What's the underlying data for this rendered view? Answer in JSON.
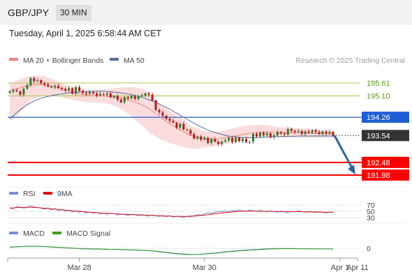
{
  "header": {
    "pair": "GBP/JPY",
    "timeframe": "30 MIN",
    "timestamp": "Tuesday, April 1, 2025 6:58:44 AM CET"
  },
  "colors": {
    "ma20": "#f08080",
    "bollinger_fill": "#fadcdc",
    "ma50": "#4a6fa5",
    "up_candle": "#2e7d32",
    "down_candle": "#b71c1c",
    "resistance_blue": "#1f5fd6",
    "support_red": "#ff0000",
    "green_level": "#a8c84a",
    "green_text": "#5a9a1a",
    "last_price_bg": "#333333",
    "arrow": "#2e63a8",
    "rsi": "#6f8fd8",
    "rsi_ma": "#e01010",
    "macd": "#6f8fd8",
    "macd_signal": "#3aa020"
  },
  "chart_data": [
    {
      "type": "candlestick",
      "legend": [
        {
          "label": "MA 20 + Bollinger Bands",
          "color": "#f08080"
        },
        {
          "label": "MA 50",
          "color": "#4a6fa5"
        }
      ],
      "watermark": "Research © 2025 Trading Central",
      "ylim": [
        191.7,
        196.1
      ],
      "closes": [
        195.27,
        195.32,
        195.28,
        195.15,
        195.38,
        195.52,
        195.8,
        195.68,
        195.72,
        195.6,
        195.55,
        195.48,
        195.45,
        195.5,
        195.42,
        195.38,
        195.32,
        195.4,
        195.2,
        195.45,
        195.3,
        195.22,
        195.18,
        195.25,
        195.2,
        195.12,
        195.18,
        195.15,
        195.2,
        195.05,
        195.1,
        194.95,
        194.85,
        195.05,
        195.0,
        195.1,
        194.98,
        195.08,
        195.12,
        195.2,
        195.15,
        194.92,
        194.55,
        194.45,
        194.32,
        194.2,
        194.12,
        194.05,
        193.85,
        194.0,
        193.78,
        193.75,
        193.6,
        193.42,
        193.5,
        193.38,
        193.45,
        193.25,
        193.4,
        193.3,
        193.2,
        193.3,
        193.35,
        193.45,
        193.28,
        193.45,
        193.32,
        193.4,
        193.28,
        193.3,
        193.6,
        193.5,
        193.65,
        193.55,
        193.62,
        193.48,
        193.55,
        193.68,
        193.62,
        193.58,
        193.8,
        193.72,
        193.68,
        193.72,
        193.6,
        193.7,
        193.65,
        193.75,
        193.68,
        193.6,
        193.7,
        193.62,
        193.68,
        193.54
      ],
      "ma20": [
        195.3,
        195.35,
        195.38,
        195.42,
        195.47,
        195.5,
        195.52,
        195.54,
        195.55,
        195.55,
        195.53,
        195.5,
        195.47,
        195.44,
        195.4,
        195.35,
        195.31,
        195.27,
        195.23,
        195.2,
        195.18,
        195.16,
        195.14,
        195.12,
        195.11,
        195.11,
        195.1,
        195.1,
        195.09,
        195.08,
        195.07,
        195.05,
        195.02,
        194.98,
        194.94,
        194.9,
        194.85,
        194.8,
        194.75,
        194.68,
        194.6,
        194.5,
        194.4,
        194.3,
        194.2,
        194.1,
        194.0,
        193.92,
        193.84,
        193.76,
        193.68,
        193.6,
        193.55,
        193.5,
        193.46,
        193.43,
        193.41,
        193.4,
        193.4,
        193.4,
        193.41,
        193.43,
        193.45,
        193.48,
        193.5,
        193.52,
        193.55,
        193.58,
        193.6,
        193.62,
        193.64,
        193.65,
        193.66,
        193.67,
        193.67,
        193.67,
        193.66,
        193.66,
        193.65,
        193.65,
        193.65,
        193.65,
        193.64,
        193.64,
        193.64,
        193.64,
        193.63,
        193.62,
        193.62,
        193.62,
        193.61,
        193.61,
        193.6,
        193.6
      ],
      "bb_upper": [
        195.6,
        195.65,
        195.7,
        195.75,
        195.8,
        195.85,
        195.88,
        195.9,
        195.9,
        195.9,
        195.88,
        195.82,
        195.78,
        195.72,
        195.65,
        195.6,
        195.55,
        195.5,
        195.45,
        195.42,
        195.4,
        195.38,
        195.36,
        195.35,
        195.35,
        195.35,
        195.36,
        195.36,
        195.37,
        195.38,
        195.4,
        195.42,
        195.43,
        195.44,
        195.45,
        195.45,
        195.44,
        195.42,
        195.38,
        195.32,
        195.22,
        195.08,
        194.95,
        194.82,
        194.7,
        194.6,
        194.5,
        194.42,
        194.35,
        194.28,
        194.18,
        194.05,
        193.95,
        193.85,
        193.8,
        193.75,
        193.72,
        193.7,
        193.68,
        193.68,
        193.7,
        193.72,
        193.75,
        193.78,
        193.82,
        193.85,
        193.88,
        193.9,
        193.92,
        193.94,
        193.95,
        193.96,
        193.96,
        193.95,
        193.94,
        193.92,
        193.9,
        193.88,
        193.86,
        193.85,
        193.85,
        193.85,
        193.84,
        193.83,
        193.82,
        193.81,
        193.8,
        193.79,
        193.78,
        193.77,
        193.76,
        193.75,
        193.74,
        193.73
      ],
      "bb_lower": [
        194.1,
        194.18,
        194.3,
        194.45,
        194.6,
        194.75,
        194.9,
        195.0,
        195.05,
        195.08,
        195.1,
        195.1,
        195.1,
        195.1,
        195.08,
        195.05,
        195.0,
        194.98,
        194.95,
        194.92,
        194.9,
        194.88,
        194.86,
        194.85,
        194.84,
        194.84,
        194.83,
        194.82,
        194.8,
        194.76,
        194.72,
        194.66,
        194.58,
        194.5,
        194.4,
        194.3,
        194.18,
        194.05,
        193.92,
        193.8,
        193.68,
        193.58,
        193.5,
        193.42,
        193.35,
        193.3,
        193.25,
        193.2,
        193.16,
        193.12,
        193.08,
        193.05,
        193.03,
        193.02,
        193.02,
        193.04,
        193.06,
        193.08,
        193.1,
        193.12,
        193.14,
        193.18,
        193.2,
        193.24,
        193.28,
        193.32,
        193.36,
        193.4,
        193.44,
        193.46,
        193.48,
        193.5,
        193.5,
        193.5,
        193.5,
        193.49,
        193.48,
        193.47,
        193.46,
        193.46,
        193.46,
        193.46,
        193.46,
        193.46,
        193.46,
        193.46,
        193.46,
        193.46,
        193.46,
        193.46,
        193.46,
        193.46,
        193.46,
        193.46
      ],
      "ma50": [
        194.2,
        194.32,
        194.44,
        194.56,
        194.66,
        194.75,
        194.83,
        194.9,
        194.96,
        195.01,
        195.05,
        195.08,
        195.11,
        195.14,
        195.16,
        195.18,
        195.2,
        195.22,
        195.23,
        195.24,
        195.25,
        195.26,
        195.27,
        195.27,
        195.28,
        195.28,
        195.28,
        195.28,
        195.27,
        195.26,
        195.25,
        195.24,
        195.22,
        195.2,
        195.18,
        195.15,
        195.12,
        195.08,
        195.04,
        195.0,
        194.95,
        194.9,
        194.84,
        194.78,
        194.72,
        194.65,
        194.58,
        194.5,
        194.42,
        194.34,
        194.26,
        194.18,
        194.1,
        194.02,
        193.95,
        193.88,
        193.82,
        193.76,
        193.7,
        193.66,
        193.62,
        193.58,
        193.55,
        193.52,
        193.5,
        193.48,
        193.47,
        193.46,
        193.45,
        193.45,
        193.45,
        193.45,
        193.46,
        193.47,
        193.48,
        193.48,
        193.49,
        193.5,
        193.5,
        193.5,
        193.51,
        193.51,
        193.51,
        193.52,
        193.52,
        193.52,
        193.52,
        193.52,
        193.52,
        193.52,
        193.52,
        193.52,
        193.52,
        193.52
      ],
      "levels": [
        {
          "value": 195.61,
          "label": "195.61",
          "kind": "green"
        },
        {
          "value": 195.1,
          "label": "195.10",
          "kind": "green"
        },
        {
          "value": 194.26,
          "label": "194.26",
          "kind": "resistance"
        },
        {
          "value": 193.54,
          "label": "193.54",
          "kind": "last"
        },
        {
          "value": 192.48,
          "label": "192.48",
          "kind": "support"
        },
        {
          "value": 191.98,
          "label": "191.98",
          "kind": "support"
        }
      ],
      "forecast_arrow": {
        "from": 193.54,
        "to": 192.0
      }
    },
    {
      "type": "line",
      "legend": [
        {
          "label": "RSI",
          "color": "#6f8fd8"
        },
        {
          "label": "9MA",
          "color": "#e01010"
        }
      ],
      "ylim": [
        25,
        75
      ],
      "levels": [
        70,
        50,
        30
      ],
      "level_labels": [
        "70",
        "50",
        "30"
      ],
      "series": [
        {
          "name": "RSI",
          "values": [
            62,
            58,
            66,
            64,
            60,
            63,
            68,
            65,
            62,
            60,
            57,
            61,
            55,
            59,
            52,
            56,
            50,
            54,
            48,
            52,
            47,
            50,
            45,
            48,
            44,
            47,
            42,
            45,
            40,
            44,
            43,
            38,
            42,
            40,
            37,
            41,
            39,
            36,
            40,
            37,
            35,
            39,
            36,
            34,
            37,
            33,
            36,
            32,
            35,
            33,
            30,
            34,
            32,
            36,
            40,
            38,
            42,
            45,
            43,
            47,
            50,
            48,
            52,
            49,
            53,
            51,
            55,
            52,
            50,
            54,
            52,
            49,
            53,
            50,
            48,
            52,
            50,
            47,
            51,
            49,
            46,
            50,
            48,
            52,
            49,
            47,
            50,
            48,
            46,
            49,
            47,
            45,
            48,
            46
          ]
        },
        {
          "name": "9MA",
          "values": [
            60,
            61,
            62,
            62,
            63,
            63,
            63,
            62,
            62,
            61,
            60,
            59,
            58,
            57,
            56,
            55,
            54,
            53,
            52,
            51,
            50,
            49,
            48,
            47,
            46,
            46,
            45,
            44,
            44,
            43,
            43,
            42,
            41,
            41,
            40,
            40,
            39,
            39,
            38,
            38,
            37,
            37,
            36,
            36,
            35,
            35,
            35,
            34,
            34,
            34,
            34,
            34,
            35,
            35,
            36,
            37,
            38,
            39,
            41,
            42,
            44,
            45,
            46,
            47,
            48,
            49,
            50,
            50,
            51,
            51,
            51,
            51,
            51,
            50,
            50,
            50,
            50,
            49,
            49,
            49,
            49,
            49,
            49,
            49,
            49,
            48,
            48,
            48,
            48,
            48,
            47,
            47,
            47,
            47
          ]
        }
      ]
    },
    {
      "type": "line",
      "legend": [
        {
          "label": "MACD",
          "color": "#6f8fd8"
        },
        {
          "label": "MACD Signal",
          "color": "#3aa020"
        }
      ],
      "ylim": [
        -0.45,
        0.2
      ],
      "zero_label": "0",
      "series": [
        {
          "name": "MACD",
          "values": [
            0.05,
            0.06,
            0.07,
            0.08,
            0.09,
            0.1,
            0.1,
            0.1,
            0.09,
            0.09,
            0.08,
            0.07,
            0.06,
            0.05,
            0.04,
            0.03,
            0.02,
            0.01,
            0.0,
            -0.01,
            -0.02,
            -0.02,
            -0.03,
            -0.03,
            -0.04,
            -0.04,
            -0.04,
            -0.05,
            -0.05,
            -0.05,
            -0.06,
            -0.06,
            -0.07,
            -0.07,
            -0.08,
            -0.08,
            -0.09,
            -0.09,
            -0.1,
            -0.11,
            -0.12,
            -0.13,
            -0.15,
            -0.17,
            -0.19,
            -0.21,
            -0.23,
            -0.25,
            -0.27,
            -0.28,
            -0.29,
            -0.3,
            -0.3,
            -0.3,
            -0.29,
            -0.28,
            -0.26,
            -0.25,
            -0.23,
            -0.22,
            -0.2,
            -0.18,
            -0.16,
            -0.15,
            -0.13,
            -0.12,
            -0.1,
            -0.09,
            -0.08,
            -0.07,
            -0.06,
            -0.05,
            -0.04,
            -0.03,
            -0.02,
            -0.02,
            -0.01,
            -0.01,
            -0.01,
            -0.01,
            -0.01,
            -0.01,
            -0.02,
            -0.02,
            -0.02,
            -0.02,
            -0.02,
            -0.02,
            -0.03,
            -0.03,
            -0.03,
            -0.03,
            -0.03,
            -0.04
          ]
        },
        {
          "name": "MACD Signal",
          "values": [
            0.06,
            0.07,
            0.07,
            0.08,
            0.08,
            0.09,
            0.09,
            0.09,
            0.09,
            0.09,
            0.08,
            0.08,
            0.07,
            0.06,
            0.05,
            0.04,
            0.03,
            0.02,
            0.01,
            0.0,
            -0.01,
            -0.01,
            -0.02,
            -0.02,
            -0.03,
            -0.03,
            -0.03,
            -0.04,
            -0.04,
            -0.05,
            -0.05,
            -0.05,
            -0.06,
            -0.06,
            -0.07,
            -0.07,
            -0.08,
            -0.08,
            -0.09,
            -0.1,
            -0.11,
            -0.12,
            -0.13,
            -0.15,
            -0.17,
            -0.19,
            -0.21,
            -0.23,
            -0.25,
            -0.26,
            -0.27,
            -0.28,
            -0.29,
            -0.29,
            -0.29,
            -0.28,
            -0.27,
            -0.26,
            -0.25,
            -0.23,
            -0.22,
            -0.2,
            -0.18,
            -0.17,
            -0.15,
            -0.14,
            -0.12,
            -0.11,
            -0.1,
            -0.09,
            -0.08,
            -0.07,
            -0.06,
            -0.05,
            -0.04,
            -0.03,
            -0.03,
            -0.02,
            -0.02,
            -0.02,
            -0.02,
            -0.02,
            -0.02,
            -0.02,
            -0.02,
            -0.02,
            -0.02,
            -0.02,
            -0.03,
            -0.03,
            -0.03,
            -0.03,
            -0.03,
            -0.03
          ]
        }
      ]
    }
  ],
  "x_axis": {
    "ticks": [
      {
        "label": "Mar 28",
        "index": 20
      },
      {
        "label": "Mar 30",
        "index": 56
      },
      {
        "label": "Apr 1",
        "index": 95
      },
      {
        "label": "Apr 11",
        "index": 108
      }
    ]
  }
}
